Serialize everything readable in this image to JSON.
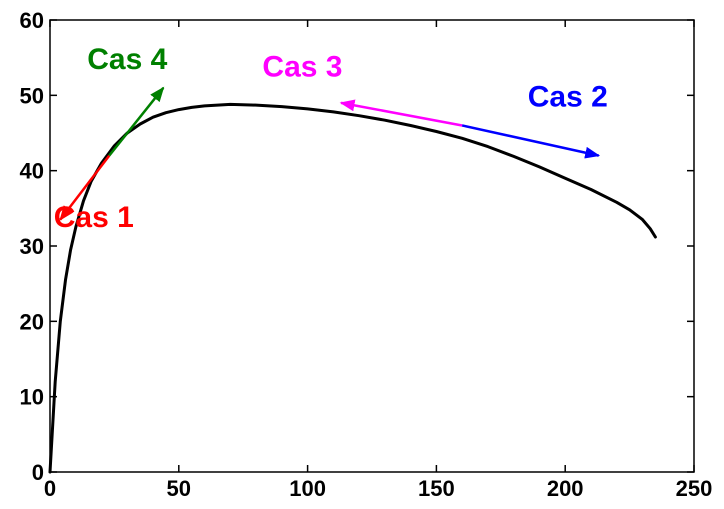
{
  "chart_data": {
    "type": "line",
    "title": "",
    "xlabel": "",
    "ylabel": "",
    "xlim": [
      0,
      250
    ],
    "ylim": [
      0,
      60
    ],
    "xticks": [
      0,
      50,
      100,
      150,
      200,
      250
    ],
    "yticks": [
      0,
      10,
      20,
      30,
      40,
      50,
      60
    ],
    "grid": false,
    "series": [
      {
        "color": "#000000",
        "x": [
          0,
          1,
          2,
          4,
          6,
          8,
          10,
          13,
          16,
          20,
          25,
          30,
          35,
          40,
          45,
          50,
          55,
          60,
          70,
          80,
          90,
          100,
          110,
          120,
          130,
          140,
          150,
          160,
          170,
          180,
          190,
          200,
          210,
          220,
          225,
          230,
          233,
          235
        ],
        "y": [
          0,
          6,
          12,
          20,
          25.5,
          29.5,
          32.5,
          36,
          38.6,
          41,
          43.3,
          45,
          46.2,
          47.1,
          47.7,
          48.1,
          48.4,
          48.6,
          48.8,
          48.7,
          48.5,
          48.2,
          47.8,
          47.3,
          46.7,
          46.0,
          45.2,
          44.3,
          43.2,
          41.9,
          40.5,
          39.0,
          37.5,
          35.8,
          34.8,
          33.5,
          32.3,
          31.2
        ]
      }
    ],
    "arrows": [
      {
        "name": "Cas 1",
        "color": "#ff0000",
        "from": [
          23,
          42
        ],
        "to": [
          4,
          33.5
        ]
      },
      {
        "name": "Cas 4",
        "color": "#008000",
        "from": [
          23,
          42
        ],
        "to": [
          44,
          51
        ]
      },
      {
        "name": "Cas 3",
        "color": "#ff00ff",
        "from": [
          160,
          46
        ],
        "to": [
          113,
          49
        ]
      },
      {
        "name": "Cas 2",
        "color": "#0000ff",
        "from": [
          160,
          46
        ],
        "to": [
          213,
          42
        ]
      }
    ],
    "annotations": [
      {
        "text": "Cas 1",
        "color": "#ff0000",
        "x": 17,
        "y": 32.5
      },
      {
        "text": "Cas 4",
        "color": "#008000",
        "x": 30,
        "y": 53.5
      },
      {
        "text": "Cas 3",
        "color": "#ff00ff",
        "x": 98,
        "y": 52.5
      },
      {
        "text": "Cas 2",
        "color": "#0000ff",
        "x": 201,
        "y": 48.5
      }
    ]
  }
}
